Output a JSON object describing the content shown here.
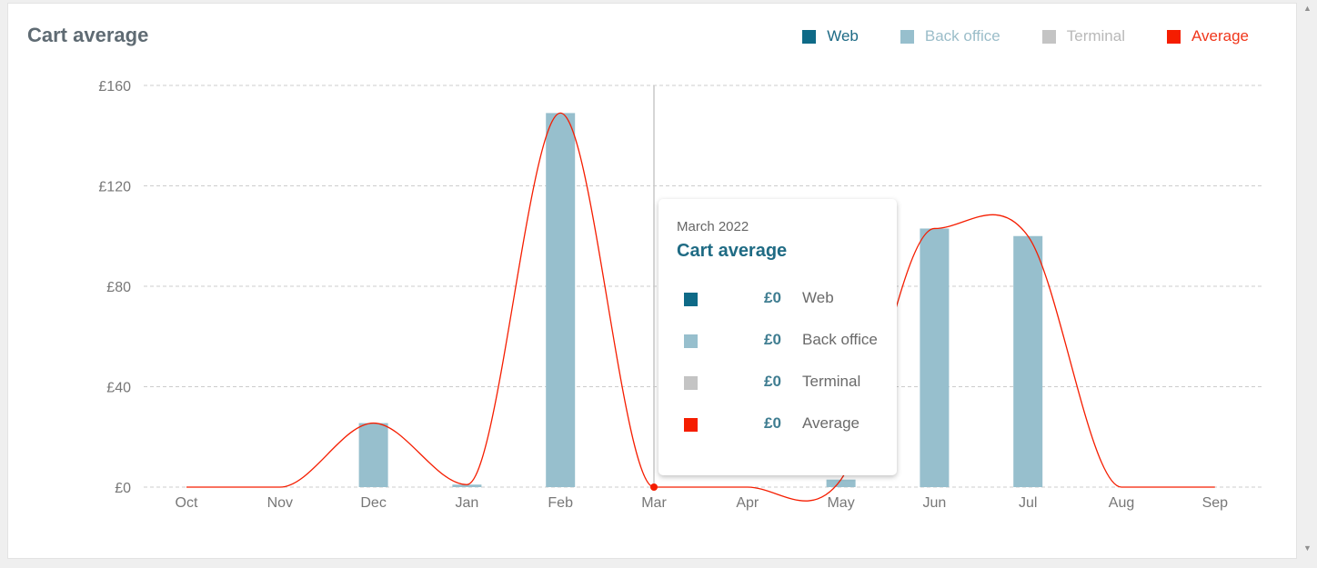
{
  "chart_data": {
    "type": "bar",
    "title": "Cart average",
    "categories": [
      "Oct",
      "Nov",
      "Dec",
      "Jan",
      "Feb",
      "Mar",
      "Apr",
      "May",
      "Jun",
      "Jul",
      "Aug",
      "Sep"
    ],
    "series": [
      {
        "name": "Web",
        "values": [
          0,
          0,
          0,
          0,
          0,
          0,
          0,
          0,
          0,
          0,
          0,
          0
        ]
      },
      {
        "name": "Back office",
        "values": [
          0,
          0,
          25.5,
          1,
          149,
          0,
          0,
          3,
          103,
          100,
          0,
          0
        ]
      },
      {
        "name": "Terminal",
        "values": [
          0,
          0,
          0,
          0,
          0,
          0,
          0,
          0,
          0,
          0,
          0,
          0
        ]
      },
      {
        "name": "Average",
        "type": "line",
        "values": [
          0,
          0,
          25.5,
          1,
          149,
          0,
          0,
          3,
          103,
          100,
          0,
          0
        ]
      }
    ],
    "y_ticks": [
      "£0",
      "£40",
      "£80",
      "£120",
      "£160"
    ],
    "y_tick_values": [
      0,
      40,
      80,
      120,
      160
    ],
    "ylim": [
      0,
      160
    ],
    "xlabel": "",
    "ylabel": "",
    "grid": true,
    "legend_position": "top-right",
    "hover_category": "Mar"
  },
  "legend": [
    {
      "label": "Web",
      "color": "#0e6a87",
      "text_color": "#1d6a85"
    },
    {
      "label": "Back office",
      "color": "#97bfcd",
      "text_color": "#9bbdc9"
    },
    {
      "label": "Terminal",
      "color": "#c4c4c4",
      "text_color": "#b9b9b9"
    },
    {
      "label": "Average",
      "color": "#f51d00",
      "text_color": "#f0361b"
    }
  ],
  "tooltip": {
    "date": "March 2022",
    "title": "Cart average",
    "rows": [
      {
        "label": "Web",
        "value": "£0",
        "color": "#0e6a87"
      },
      {
        "label": "Back office",
        "value": "£0",
        "color": "#97bfcd"
      },
      {
        "label": "Terminal",
        "value": "£0",
        "color": "#c4c4c4"
      },
      {
        "label": "Average",
        "value": "£0",
        "color": "#f51d00"
      }
    ]
  },
  "colors": {
    "bar": "#97bfcd",
    "line": "#f51d00",
    "grid": "#cccccc",
    "crosshair": "#c8c8c8"
  }
}
